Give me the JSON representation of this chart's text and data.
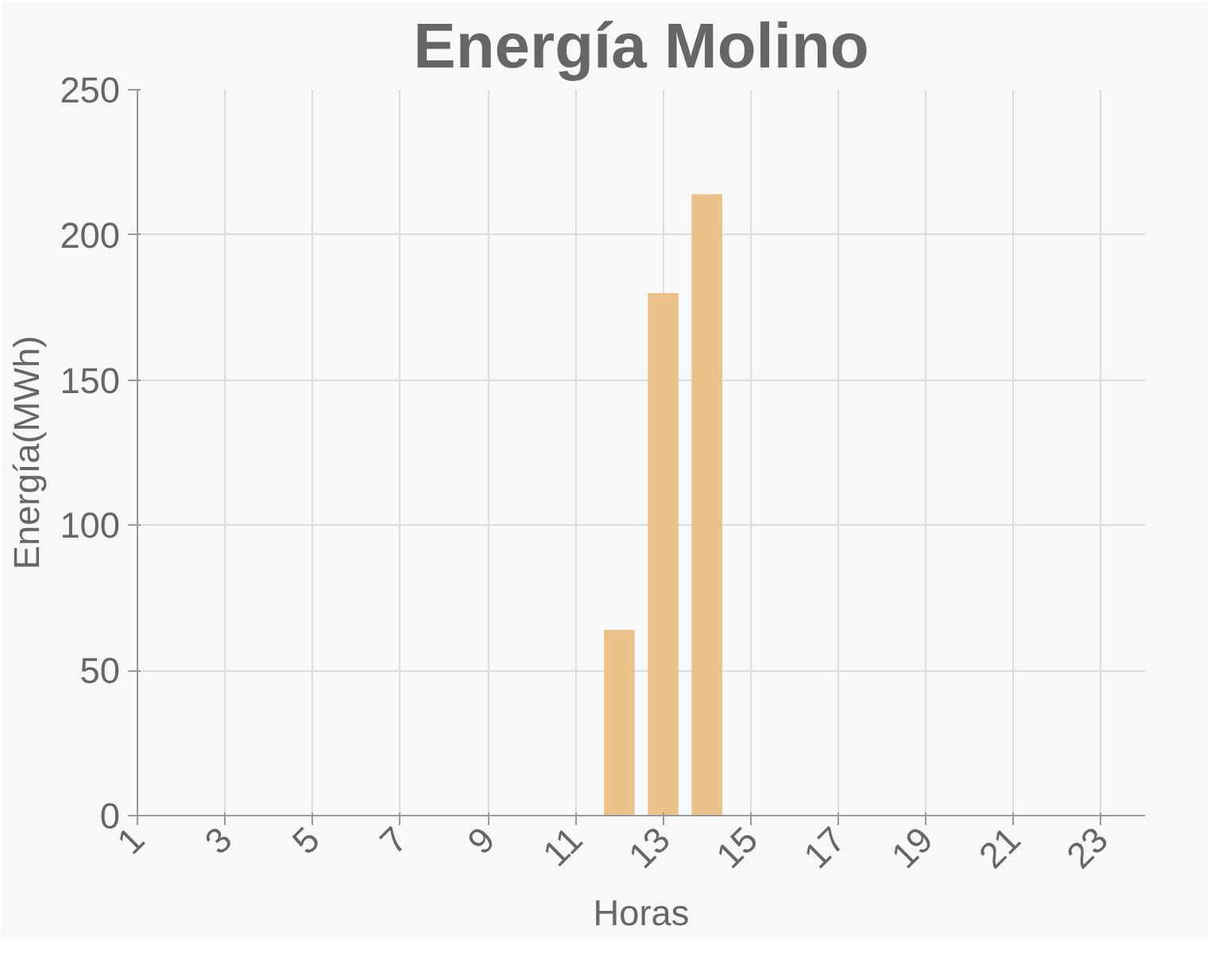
{
  "chart_data": {
    "type": "bar",
    "title": "Energía Molino",
    "xlabel": "Horas",
    "ylabel": "Energía(MWh)",
    "x": [
      12,
      13,
      14
    ],
    "values": [
      64,
      180,
      214
    ],
    "color": "#ebc38a",
    "xlim": [
      1,
      24
    ],
    "xticks": [
      1,
      3,
      5,
      7,
      9,
      11,
      13,
      15,
      17,
      19,
      21,
      23
    ],
    "ylim": [
      0,
      250
    ],
    "yticks": [
      0,
      50,
      100,
      150,
      200,
      250
    ],
    "grid": true
  }
}
